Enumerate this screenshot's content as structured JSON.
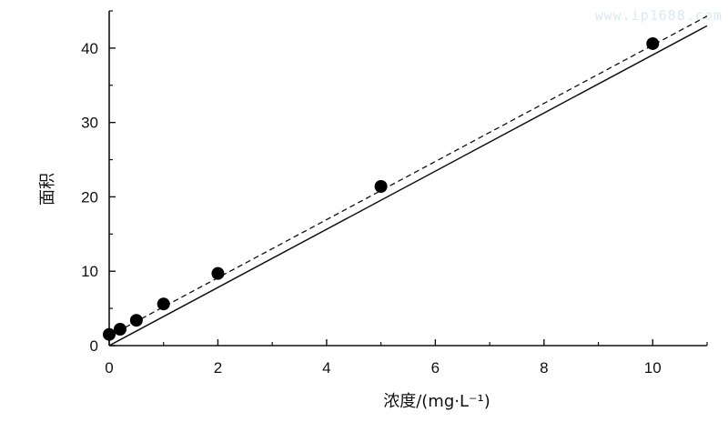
{
  "watermark": "www.ip1688.com",
  "chart_data": {
    "type": "scatter",
    "xlabel": "浓度/(mg·L⁻¹)",
    "ylabel": "面积",
    "xlim": [
      0,
      11
    ],
    "ylim": [
      0,
      45
    ],
    "x_ticks": [
      0,
      2,
      4,
      6,
      8,
      10
    ],
    "y_ticks": [
      0,
      10,
      20,
      30,
      40
    ],
    "grid": false,
    "series": [
      {
        "kind": "points",
        "marker": "filled-circle",
        "x": [
          0,
          0.2,
          0.5,
          1,
          2,
          5,
          10
        ],
        "y": [
          1.5,
          2.2,
          3.4,
          5.6,
          9.7,
          21.4,
          40.6
        ]
      },
      {
        "kind": "line",
        "style": "solid",
        "x": [
          0,
          11
        ],
        "y": [
          0,
          43
        ]
      },
      {
        "kind": "line",
        "style": "dashed",
        "x": [
          0,
          11
        ],
        "y": [
          1.3,
          44.3
        ]
      }
    ]
  }
}
